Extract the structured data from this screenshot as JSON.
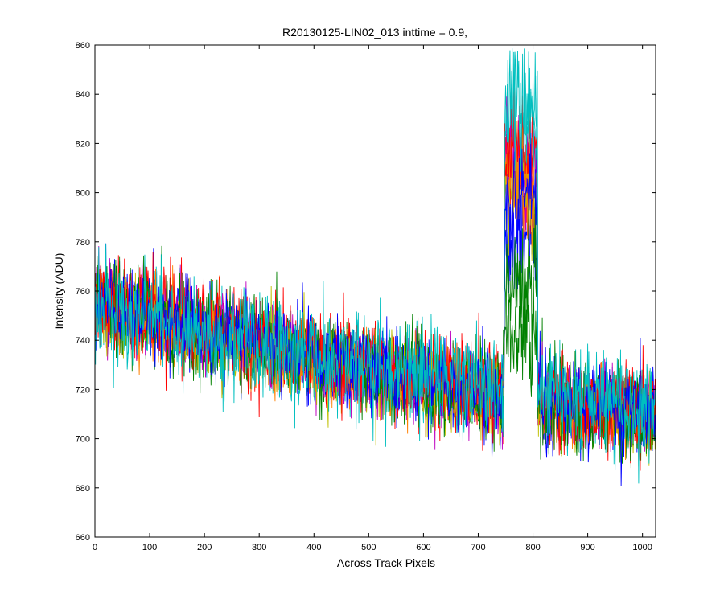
{
  "chart_data": {
    "type": "line",
    "title": "R20130125-LIN02_013 inttime = 0.9,",
    "xlabel": "Across Track Pixels",
    "ylabel": "Intensity (ADU)",
    "xlim": [
      0,
      1024
    ],
    "ylim": [
      660,
      860
    ],
    "xticks": [
      0,
      100,
      200,
      300,
      400,
      500,
      600,
      700,
      800,
      900,
      1000
    ],
    "yticks": [
      660,
      680,
      700,
      720,
      740,
      760,
      780,
      800,
      820,
      840,
      860
    ],
    "grid": false,
    "peak": {
      "x_start": 748,
      "x_end": 808
    },
    "series": [
      {
        "name": "series-1",
        "color": "#0000ff",
        "baseline_start": 758,
        "baseline_end": 708,
        "peak_level": 780,
        "noise": 14
      },
      {
        "name": "series-2",
        "color": "#008000",
        "baseline_start": 756,
        "baseline_end": 710,
        "peak_level": 745,
        "noise": 15
      },
      {
        "name": "series-3",
        "color": "#ff0000",
        "baseline_start": 758,
        "baseline_end": 711,
        "peak_level": 810,
        "noise": 15
      },
      {
        "name": "series-4",
        "color": "#00bfbf",
        "baseline_start": 755,
        "baseline_end": 712,
        "peak_level": 828,
        "noise": 15
      },
      {
        "name": "series-5",
        "color": "#bf00bf",
        "baseline_start": 754,
        "baseline_end": 710,
        "peak_level": 812,
        "noise": 14
      },
      {
        "name": "series-6",
        "color": "#bfbf00",
        "baseline_start": 753,
        "baseline_end": 709,
        "peak_level": 800,
        "noise": 13
      },
      {
        "name": "series-7",
        "color": "#ff8000",
        "baseline_start": 752,
        "baseline_end": 709,
        "peak_level": 806,
        "noise": 12
      },
      {
        "name": "series-8",
        "color": "#008000",
        "baseline_start": 756,
        "baseline_end": 708,
        "peak_level": 760,
        "noise": 15
      },
      {
        "name": "series-9",
        "color": "#ff0000",
        "baseline_start": 754,
        "baseline_end": 712,
        "peak_level": 818,
        "noise": 14
      },
      {
        "name": "series-10",
        "color": "#0000ff",
        "baseline_start": 755,
        "baseline_end": 711,
        "peak_level": 795,
        "noise": 13
      },
      {
        "name": "series-11",
        "color": "#00bfbf",
        "baseline_start": 754,
        "baseline_end": 713,
        "peak_level": 835,
        "noise": 16
      }
    ]
  }
}
